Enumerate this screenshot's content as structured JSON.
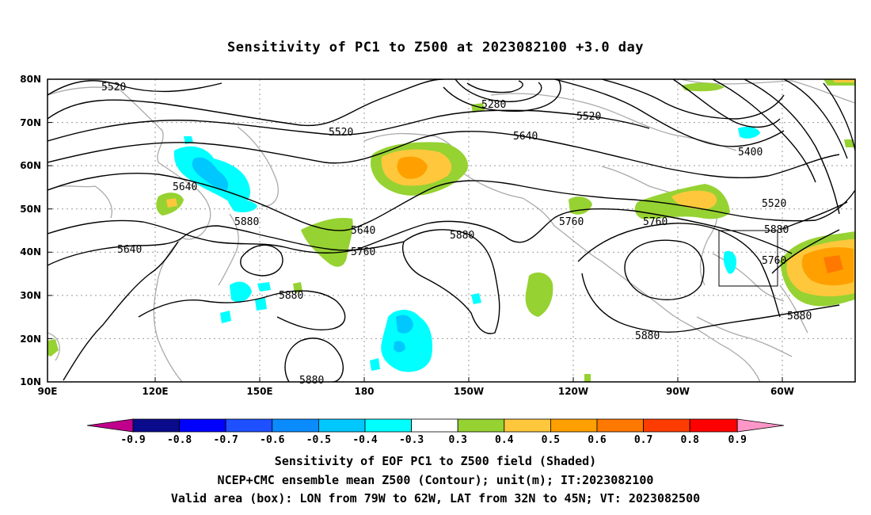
{
  "title": "Sensitivity of PC1 to Z500 at 2023082100 +3.0 day",
  "lat_labels": [
    "80N",
    "70N",
    "60N",
    "50N",
    "40N",
    "30N",
    "20N",
    "10N"
  ],
  "lon_labels": [
    "90E",
    "120E",
    "150E",
    "180",
    "150W",
    "120W",
    "90W",
    "60W"
  ],
  "contour_labels": [
    {
      "id": "c5520a",
      "text": "5520"
    },
    {
      "id": "c5280",
      "text": "5280"
    },
    {
      "id": "c5520b",
      "text": "5520"
    },
    {
      "id": "c5520c",
      "text": "5520"
    },
    {
      "id": "c5640a",
      "text": "5640"
    },
    {
      "id": "c5400",
      "text": "5400"
    },
    {
      "id": "c5640b",
      "text": "5640"
    },
    {
      "id": "c5520d",
      "text": "5520"
    },
    {
      "id": "c5880a",
      "text": "5880"
    },
    {
      "id": "c5640c",
      "text": "5640"
    },
    {
      "id": "c5760a",
      "text": "5760"
    },
    {
      "id": "c5880b",
      "text": "5880"
    },
    {
      "id": "c5760b",
      "text": "5760"
    },
    {
      "id": "c5880c",
      "text": "5880"
    },
    {
      "id": "c5640d",
      "text": "5640"
    },
    {
      "id": "c5760c",
      "text": "5760"
    },
    {
      "id": "c5760d",
      "text": "5760"
    },
    {
      "id": "c5880d",
      "text": "5880"
    },
    {
      "id": "c5880e",
      "text": "5880"
    },
    {
      "id": "c5880f",
      "text": "5880"
    },
    {
      "id": "c5880g",
      "text": "5880"
    }
  ],
  "colorbar": {
    "colors": [
      "#c0008c",
      "#0a0a8c",
      "#0000ff",
      "#1e50ff",
      "#0a8cff",
      "#00c8ff",
      "#00ffff",
      "#ffffff",
      "#96d232",
      "#ffc83c",
      "#ffa000",
      "#ff7800",
      "#ff3c00",
      "#ff0000",
      "#ff96c8"
    ],
    "ticks": [
      "-0.9",
      "-0.8",
      "-0.7",
      "-0.6",
      "-0.5",
      "-0.4",
      "-0.3",
      "0.3",
      "0.4",
      "0.5",
      "0.6",
      "0.7",
      "0.8",
      "0.9"
    ]
  },
  "footer": {
    "line1": "Sensitivity of EOF PC1 to Z500 field (Shaded)",
    "line2": "NCEP+CMC ensemble mean Z500 (Contour); unit(m); IT:2023082100",
    "line3": "Valid area (box): LON from 79W to 62W, LAT from 32N to 45N; VT: 2023082500"
  }
}
